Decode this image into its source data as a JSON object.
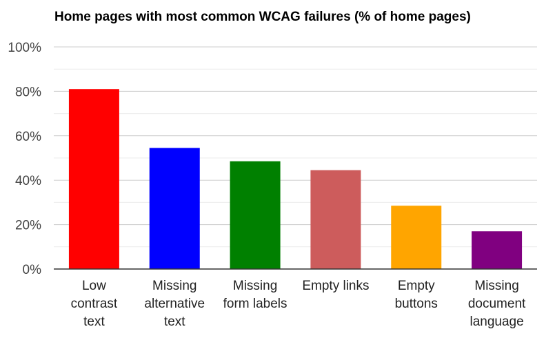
{
  "chart_data": {
    "type": "bar",
    "title": "Home pages with most common WCAG failures (% of home pages)",
    "xlabel": "",
    "ylabel": "",
    "categories": [
      [
        "Low",
        "contrast",
        "text"
      ],
      [
        "Missing",
        "alternative",
        "text"
      ],
      [
        "Missing",
        "form labels"
      ],
      [
        "Empty links"
      ],
      [
        "Empty",
        "buttons"
      ],
      [
        "Missing",
        "document",
        "language"
      ]
    ],
    "values": [
      81,
      54.5,
      48.5,
      44.5,
      28.5,
      17
    ],
    "colors": [
      "#ff0000",
      "#0000ff",
      "#008000",
      "#cd5c5c",
      "#ffa500",
      "#800080"
    ],
    "ylim": [
      0,
      100
    ],
    "yticks": [
      0,
      20,
      40,
      60,
      80,
      100
    ],
    "ytick_labels": [
      "0%",
      "20%",
      "40%",
      "60%",
      "80%",
      "100%"
    ],
    "grid": true,
    "legend": "none"
  }
}
